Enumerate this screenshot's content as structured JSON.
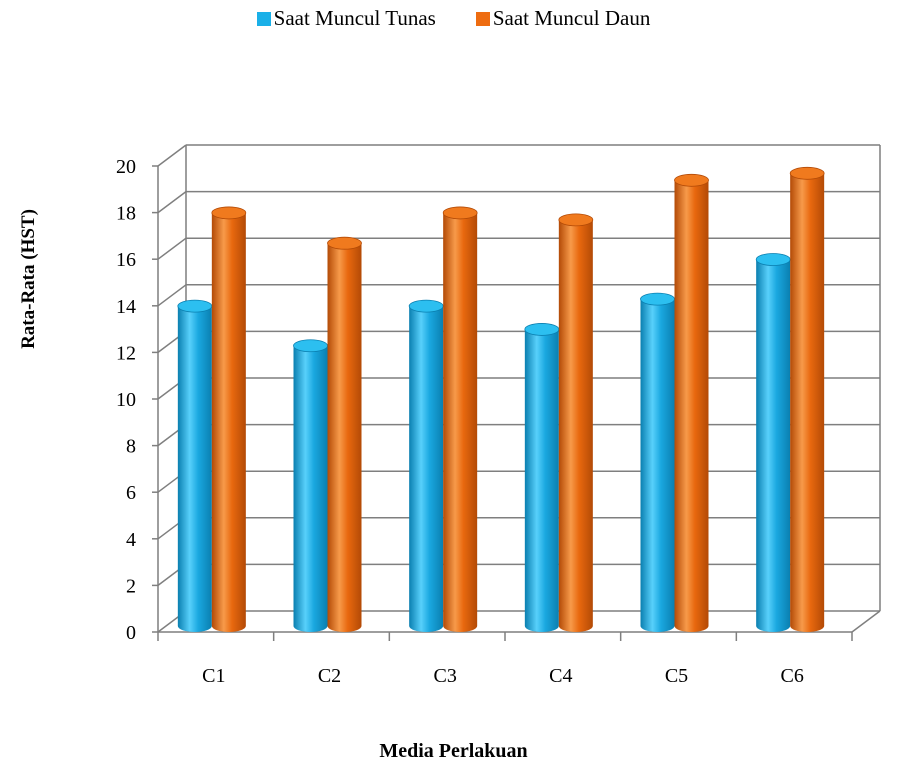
{
  "chart_data": {
    "type": "bar",
    "title": "",
    "xlabel": "Media Perlakuan",
    "ylabel": "Rata-Rata (HST)",
    "categories": [
      "C1",
      "C2",
      "C3",
      "C4",
      "C5",
      "C6"
    ],
    "series": [
      {
        "name": "Saat Muncul Tunas",
        "values": [
          13.6,
          11.9,
          13.6,
          12.6,
          13.9,
          15.6
        ],
        "color": "#1ab0e8"
      },
      {
        "name": "Saat Muncul Daun",
        "values": [
          17.6,
          16.3,
          17.6,
          17.3,
          19.0,
          19.3
        ],
        "color": "#ee6c10"
      }
    ],
    "ylim": [
      0,
      20
    ],
    "yticks": [
      "0",
      "2",
      "4",
      "6",
      "8",
      "10",
      "12",
      "14",
      "16",
      "18",
      "20"
    ],
    "grid": true,
    "legend": "top",
    "style": "3d-cylinder"
  }
}
